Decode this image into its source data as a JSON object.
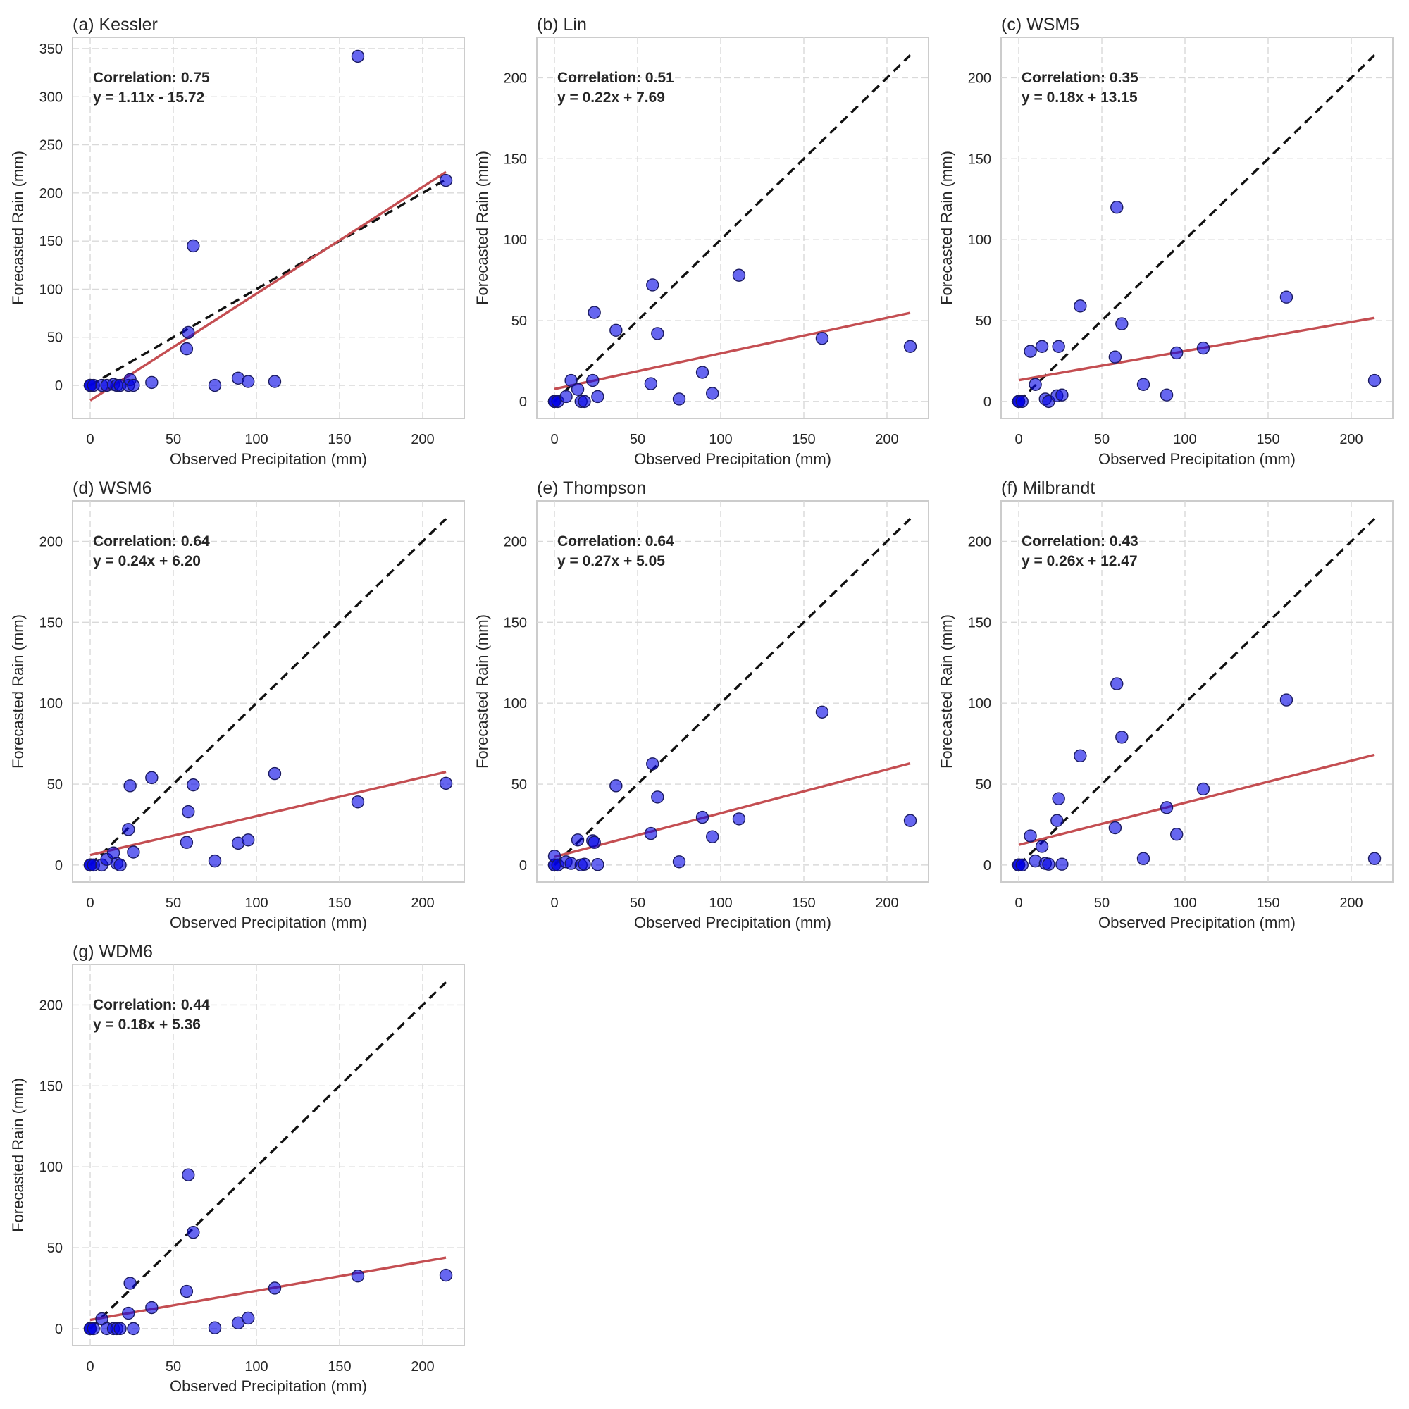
{
  "chart_data": [
    {
      "type": "scatter",
      "title": "(a) Kessler",
      "xlabel": "Observed Precipitation (mm)",
      "ylabel": "Forecasted Rain (mm)",
      "xlim": [
        -10.6,
        225
      ],
      "ylim": [
        -34.4,
        361.7
      ],
      "xticks": [
        0,
        50,
        100,
        150,
        200
      ],
      "yticks": [
        0,
        50,
        100,
        150,
        200,
        250,
        300,
        350
      ],
      "grid": true,
      "annotation": {
        "correlation": "Correlation: 0.75",
        "equation": "y = 1.11x - 15.72"
      },
      "fit": {
        "slope": 1.11,
        "intercept": -15.72
      },
      "points": [
        [
          0,
          0
        ],
        [
          0,
          0
        ],
        [
          0,
          0
        ],
        [
          2,
          0
        ],
        [
          7,
          0
        ],
        [
          10,
          0
        ],
        [
          14,
          1
        ],
        [
          16,
          0
        ],
        [
          18,
          0
        ],
        [
          23,
          0
        ],
        [
          24,
          6
        ],
        [
          26,
          0
        ],
        [
          37,
          3
        ],
        [
          58,
          38
        ],
        [
          59,
          55
        ],
        [
          62,
          145
        ],
        [
          75,
          0
        ],
        [
          89,
          7.5
        ],
        [
          95,
          4
        ],
        [
          111,
          4
        ],
        [
          161,
          342
        ],
        [
          214,
          213
        ]
      ]
    },
    {
      "type": "scatter",
      "title": "(b) Lin",
      "xlabel": "Observed Precipitation (mm)",
      "ylabel": "Forecasted Rain (mm)",
      "xlim": [
        -10.6,
        225
      ],
      "ylim": [
        -10.5,
        225
      ],
      "xticks": [
        0,
        50,
        100,
        150,
        200
      ],
      "yticks": [
        0,
        50,
        100,
        150,
        200
      ],
      "grid": true,
      "annotation": {
        "correlation": "Correlation: 0.51",
        "equation": "y = 0.22x + 7.69"
      },
      "fit": {
        "slope": 0.22,
        "intercept": 7.69
      },
      "points": [
        [
          0,
          0
        ],
        [
          0,
          0
        ],
        [
          0,
          0
        ],
        [
          2,
          0
        ],
        [
          7,
          3
        ],
        [
          10,
          13
        ],
        [
          14,
          7.5
        ],
        [
          16,
          0
        ],
        [
          18,
          0
        ],
        [
          23,
          13
        ],
        [
          24,
          55
        ],
        [
          26,
          3
        ],
        [
          37,
          44
        ],
        [
          58,
          11
        ],
        [
          59,
          72
        ],
        [
          62,
          42
        ],
        [
          75,
          1.5
        ],
        [
          89,
          18
        ],
        [
          95,
          5
        ],
        [
          111,
          78
        ],
        [
          161,
          39
        ],
        [
          214,
          34
        ]
      ]
    },
    {
      "type": "scatter",
      "title": "(c) WSM5",
      "xlabel": "Observed Precipitation (mm)",
      "ylabel": "Forecasted Rain (mm)",
      "xlim": [
        -10.6,
        225
      ],
      "ylim": [
        -10.5,
        225
      ],
      "xticks": [
        0,
        50,
        100,
        150,
        200
      ],
      "yticks": [
        0,
        50,
        100,
        150,
        200
      ],
      "grid": true,
      "annotation": {
        "correlation": "Correlation: 0.35",
        "equation": "y = 0.18x + 13.15"
      },
      "fit": {
        "slope": 0.18,
        "intercept": 13.15
      },
      "points": [
        [
          0,
          0
        ],
        [
          0,
          0
        ],
        [
          0,
          0
        ],
        [
          2,
          0
        ],
        [
          7,
          31
        ],
        [
          10,
          10.5
        ],
        [
          14,
          34
        ],
        [
          16,
          1.5
        ],
        [
          18,
          0
        ],
        [
          23,
          3.5
        ],
        [
          24,
          34
        ],
        [
          26,
          4
        ],
        [
          37,
          59
        ],
        [
          58,
          27.5
        ],
        [
          59,
          120
        ],
        [
          62,
          48
        ],
        [
          75,
          10.5
        ],
        [
          89,
          4
        ],
        [
          95,
          30
        ],
        [
          111,
          33
        ],
        [
          161,
          64.5
        ],
        [
          214,
          13
        ]
      ]
    },
    {
      "type": "scatter",
      "title": "(d) WSM6",
      "xlabel": "Observed Precipitation (mm)",
      "ylabel": "Forecasted Rain (mm)",
      "xlim": [
        -10.6,
        225
      ],
      "ylim": [
        -10.5,
        225
      ],
      "xticks": [
        0,
        50,
        100,
        150,
        200
      ],
      "yticks": [
        0,
        50,
        100,
        150,
        200
      ],
      "grid": true,
      "annotation": {
        "correlation": "Correlation: 0.64",
        "equation": "y = 0.24x + 6.20"
      },
      "fit": {
        "slope": 0.24,
        "intercept": 6.2
      },
      "points": [
        [
          0,
          0
        ],
        [
          0,
          0
        ],
        [
          0,
          0
        ],
        [
          2,
          0
        ],
        [
          7,
          0
        ],
        [
          10,
          3.5
        ],
        [
          14,
          7.5
        ],
        [
          16,
          1
        ],
        [
          18,
          0
        ],
        [
          23,
          22
        ],
        [
          24,
          49
        ],
        [
          26,
          8
        ],
        [
          37,
          54
        ],
        [
          58,
          14
        ],
        [
          59,
          33
        ],
        [
          62,
          49.5
        ],
        [
          75,
          2.5
        ],
        [
          89,
          13.5
        ],
        [
          95,
          15.5
        ],
        [
          111,
          56.5
        ],
        [
          161,
          39
        ],
        [
          214,
          50.5
        ]
      ]
    },
    {
      "type": "scatter",
      "title": "(e) Thompson",
      "xlabel": "Observed Precipitation (mm)",
      "ylabel": "Forecasted Rain (mm)",
      "xlim": [
        -10.6,
        225
      ],
      "ylim": [
        -10.5,
        225
      ],
      "xticks": [
        0,
        50,
        100,
        150,
        200
      ],
      "yticks": [
        0,
        50,
        100,
        150,
        200
      ],
      "grid": true,
      "annotation": {
        "correlation": "Correlation: 0.64",
        "equation": "y = 0.27x + 5.05"
      },
      "fit": {
        "slope": 0.27,
        "intercept": 5.05
      },
      "points": [
        [
          0,
          0
        ],
        [
          0,
          0
        ],
        [
          0,
          5.5
        ],
        [
          2,
          0
        ],
        [
          7,
          2
        ],
        [
          10,
          1
        ],
        [
          14,
          15.5
        ],
        [
          16,
          0
        ],
        [
          18,
          0.5
        ],
        [
          23,
          15
        ],
        [
          24,
          14
        ],
        [
          26,
          0.3
        ],
        [
          37,
          49
        ],
        [
          58,
          19.5
        ],
        [
          59,
          62.5
        ],
        [
          62,
          42
        ],
        [
          75,
          2
        ],
        [
          89,
          29.5
        ],
        [
          95,
          17.5
        ],
        [
          111,
          28.5
        ],
        [
          161,
          94.5
        ],
        [
          214,
          27.5
        ]
      ]
    },
    {
      "type": "scatter",
      "title": "(f) Milbrandt",
      "xlabel": "Observed Precipitation (mm)",
      "ylabel": "Forecasted Rain (mm)",
      "xlim": [
        -10.6,
        225
      ],
      "ylim": [
        -10.5,
        225
      ],
      "xticks": [
        0,
        50,
        100,
        150,
        200
      ],
      "yticks": [
        0,
        50,
        100,
        150,
        200
      ],
      "grid": true,
      "annotation": {
        "correlation": "Correlation: 0.43",
        "equation": "y = 0.26x + 12.47"
      },
      "fit": {
        "slope": 0.26,
        "intercept": 12.47
      },
      "points": [
        [
          0,
          0
        ],
        [
          0,
          0
        ],
        [
          0,
          0
        ],
        [
          2,
          0
        ],
        [
          7,
          18
        ],
        [
          10,
          2.5
        ],
        [
          14,
          11.5
        ],
        [
          16,
          1
        ],
        [
          18,
          0.5
        ],
        [
          23,
          27.5
        ],
        [
          24,
          41
        ],
        [
          26,
          0.5
        ],
        [
          37,
          67.5
        ],
        [
          58,
          23
        ],
        [
          59,
          112
        ],
        [
          62,
          79
        ],
        [
          75,
          4
        ],
        [
          89,
          35.5
        ],
        [
          95,
          19
        ],
        [
          111,
          47
        ],
        [
          161,
          102
        ],
        [
          214,
          4
        ]
      ]
    },
    {
      "type": "scatter",
      "title": "(g) WDM6",
      "xlabel": "Observed Precipitation (mm)",
      "ylabel": "Forecasted Rain (mm)",
      "xlim": [
        -10.6,
        225
      ],
      "ylim": [
        -10.5,
        225
      ],
      "xticks": [
        0,
        50,
        100,
        150,
        200
      ],
      "yticks": [
        0,
        50,
        100,
        150,
        200
      ],
      "grid": true,
      "annotation": {
        "correlation": "Correlation: 0.44",
        "equation": "y = 0.18x + 5.36"
      },
      "fit": {
        "slope": 0.18,
        "intercept": 5.36
      },
      "points": [
        [
          0,
          0
        ],
        [
          0,
          0
        ],
        [
          0,
          0
        ],
        [
          2,
          0
        ],
        [
          7,
          6
        ],
        [
          10,
          0
        ],
        [
          14,
          0
        ],
        [
          16,
          0
        ],
        [
          18,
          0
        ],
        [
          23,
          9.5
        ],
        [
          24,
          28
        ],
        [
          26,
          0
        ],
        [
          37,
          13
        ],
        [
          58,
          23
        ],
        [
          59,
          95
        ],
        [
          62,
          59.5
        ],
        [
          75,
          0.5
        ],
        [
          89,
          3.5
        ],
        [
          95,
          6.5
        ],
        [
          111,
          25
        ],
        [
          161,
          32.5
        ],
        [
          214,
          33
        ]
      ]
    }
  ],
  "identity_line": {
    "x_range": [
      0,
      214
    ],
    "color": "#111111",
    "style": "dashed"
  },
  "colors": {
    "point_fill": "#0000e6",
    "point_edge": "#1a1a60",
    "fit_line": "#c44e52",
    "identity_line": "#111111",
    "grid": "#d9d9d9",
    "frame": "#cccccc"
  }
}
